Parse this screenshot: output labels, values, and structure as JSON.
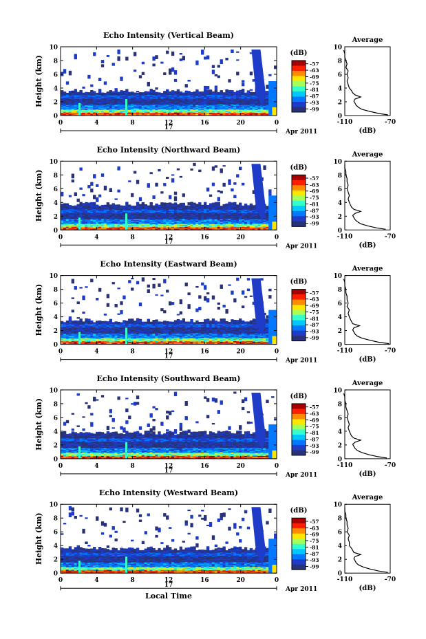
{
  "figure": {
    "date_day": "17",
    "date_month_year": "Apr 2011",
    "xlabel": "Local Time",
    "ylabel": "Height (km)",
    "colorbar_unit": "(dB)",
    "colorbar_ticks": [
      "-57",
      "-63",
      "-69",
      "-75",
      "-81",
      "-87",
      "-93",
      "-99"
    ],
    "colorbar_colors": [
      "#a80000",
      "#ff1e00",
      "#ff8c00",
      "#ffe600",
      "#a6ff59",
      "#33ffcc",
      "#00c8ff",
      "#0078ff",
      "#1e3cc8",
      "#283278"
    ],
    "profile_title": "Average",
    "profile_xlabel": "(dB)",
    "profile_xticks": [
      "-110",
      "-70"
    ]
  },
  "chart_data": [
    {
      "type": "heatmap",
      "title": "Echo Intensity (Vertical Beam)",
      "xlabel": "Local Time",
      "ylabel": "Height (km)",
      "x_ticks": [
        "0",
        "4",
        "8",
        "12",
        "16",
        "20",
        "0"
      ],
      "y_ticks": [
        "0",
        "2",
        "4",
        "6",
        "8",
        "10"
      ],
      "xlim": [
        0,
        24
      ],
      "ylim": [
        0,
        10
      ],
      "color_unit": "(dB)",
      "color_range": [
        -99,
        -57
      ],
      "cloud_top_km": 3.6,
      "profile": {
        "title": "Average",
        "xlabel": "(dB)",
        "xlim": [
          -110,
          -70
        ],
        "height_km": [
          0.1,
          0.3,
          0.6,
          0.9,
          1.2,
          1.5,
          1.8,
          2.1,
          2.4,
          2.7,
          3.0,
          3.3,
          3.6,
          4.0,
          4.5,
          5.0,
          5.5,
          6.0,
          6.5,
          7.0,
          7.5,
          8.0,
          8.5,
          9.0,
          9.5
        ],
        "db": [
          -72,
          -80,
          -88,
          -95,
          -98,
          -100,
          -101,
          -102,
          -101,
          -96,
          -101,
          -103,
          -104,
          -106,
          -107,
          -108,
          -107,
          -108,
          -107,
          -109,
          -108,
          -109,
          -110,
          -110,
          -111
        ]
      }
    },
    {
      "type": "heatmap",
      "title": "Echo Intensity (Northward Beam)",
      "xlabel": "Local Time",
      "ylabel": "Height (km)",
      "x_ticks": [
        "0",
        "4",
        "8",
        "12",
        "16",
        "20",
        "0"
      ],
      "y_ticks": [
        "0",
        "2",
        "4",
        "6",
        "8",
        "10"
      ],
      "xlim": [
        0,
        24
      ],
      "ylim": [
        0,
        10
      ],
      "color_unit": "(dB)",
      "color_range": [
        -99,
        -57
      ],
      "cloud_top_km": 3.8,
      "profile": {
        "title": "Average",
        "xlabel": "(dB)",
        "xlim": [
          -110,
          -70
        ],
        "height_km": [
          0.1,
          0.3,
          0.6,
          0.9,
          1.2,
          1.5,
          1.8,
          2.1,
          2.4,
          2.7,
          3.0,
          3.3,
          3.6,
          4.0,
          4.5,
          5.0,
          5.5,
          6.0,
          6.5,
          7.0,
          7.5,
          8.0,
          8.5,
          9.0,
          9.5
        ],
        "db": [
          -74,
          -82,
          -90,
          -96,
          -99,
          -101,
          -102,
          -103,
          -101,
          -96,
          -102,
          -104,
          -105,
          -106,
          -107,
          -106,
          -107,
          -108,
          -107,
          -108,
          -108,
          -109,
          -109,
          -110,
          -110
        ]
      }
    },
    {
      "type": "heatmap",
      "title": "Echo Intensity (Eastward Beam)",
      "xlabel": "Local Time",
      "ylabel": "Height (km)",
      "x_ticks": [
        "0",
        "4",
        "8",
        "12",
        "16",
        "20",
        "0"
      ],
      "y_ticks": [
        "0",
        "2",
        "4",
        "6",
        "8",
        "10"
      ],
      "xlim": [
        0,
        24
      ],
      "ylim": [
        0,
        10
      ],
      "color_unit": "(dB)",
      "color_range": [
        -99,
        -57
      ],
      "cloud_top_km": 3.5,
      "profile": {
        "title": "Average",
        "xlabel": "(dB)",
        "xlim": [
          -110,
          -70
        ],
        "height_km": [
          0.1,
          0.3,
          0.6,
          0.9,
          1.2,
          1.5,
          1.8,
          2.1,
          2.4,
          2.7,
          3.0,
          3.3,
          3.6,
          4.0,
          4.5,
          5.0,
          5.5,
          6.0,
          6.5,
          7.0,
          7.5,
          8.0,
          8.5,
          9.0,
          9.5
        ],
        "db": [
          -71,
          -80,
          -88,
          -95,
          -99,
          -101,
          -102,
          -103,
          -102,
          -97,
          -103,
          -104,
          -105,
          -106,
          -107,
          -106,
          -108,
          -107,
          -108,
          -108,
          -109,
          -109,
          -110,
          -110,
          -111
        ]
      }
    },
    {
      "type": "heatmap",
      "title": "Echo Intensity (Southward Beam)",
      "xlabel": "Local Time",
      "ylabel": "Height (km)",
      "x_ticks": [
        "0",
        "4",
        "8",
        "12",
        "16",
        "20",
        "0"
      ],
      "y_ticks": [
        "0",
        "2",
        "4",
        "6",
        "8",
        "10"
      ],
      "xlim": [
        0,
        24
      ],
      "ylim": [
        0,
        10
      ],
      "color_unit": "(dB)",
      "color_range": [
        -99,
        -57
      ],
      "cloud_top_km": 3.8,
      "profile": {
        "title": "Average",
        "xlabel": "(dB)",
        "xlim": [
          -110,
          -70
        ],
        "height_km": [
          0.1,
          0.3,
          0.6,
          0.9,
          1.2,
          1.5,
          1.8,
          2.1,
          2.4,
          2.7,
          3.0,
          3.3,
          3.6,
          4.0,
          4.5,
          5.0,
          5.5,
          6.0,
          6.5,
          7.0,
          7.5,
          8.0,
          8.5,
          9.0,
          9.5
        ],
        "db": [
          -73,
          -81,
          -89,
          -95,
          -99,
          -101,
          -102,
          -103,
          -101,
          -96,
          -102,
          -104,
          -105,
          -106,
          -107,
          -106,
          -107,
          -108,
          -107,
          -108,
          -109,
          -109,
          -110,
          -110,
          -111
        ]
      }
    },
    {
      "type": "heatmap",
      "title": "Echo Intensity (Westward Beam)",
      "xlabel": "Local Time",
      "ylabel": "Height (km)",
      "x_ticks": [
        "0",
        "4",
        "8",
        "12",
        "16",
        "20",
        "0"
      ],
      "y_ticks": [
        "0",
        "2",
        "4",
        "6",
        "8",
        "10"
      ],
      "xlim": [
        0,
        24
      ],
      "ylim": [
        0,
        10
      ],
      "color_unit": "(dB)",
      "color_range": [
        -99,
        -57
      ],
      "cloud_top_km": 3.6,
      "profile": {
        "title": "Average",
        "xlabel": "(dB)",
        "xlim": [
          -110,
          -70
        ],
        "height_km": [
          0.1,
          0.3,
          0.6,
          0.9,
          1.2,
          1.5,
          1.8,
          2.1,
          2.4,
          2.7,
          3.0,
          3.3,
          3.6,
          4.0,
          4.5,
          5.0,
          5.5,
          6.0,
          6.5,
          7.0,
          7.5,
          8.0,
          8.5,
          9.0,
          9.5
        ],
        "db": [
          -72,
          -80,
          -88,
          -94,
          -98,
          -100,
          -101,
          -102,
          -101,
          -96,
          -102,
          -103,
          -104,
          -106,
          -106,
          -107,
          -106,
          -108,
          -107,
          -108,
          -108,
          -109,
          -109,
          -110,
          -110
        ]
      }
    }
  ]
}
